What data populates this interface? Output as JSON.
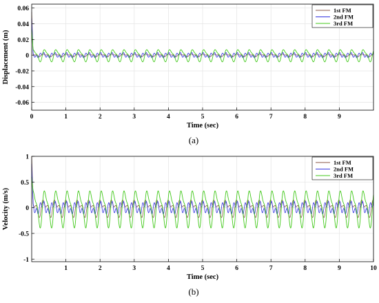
{
  "colors": {
    "first": "#8b5a4a",
    "second": "#3030e0",
    "third": "#40c818"
  },
  "chart_data": [
    {
      "type": "line",
      "caption": "(a)",
      "xlabel": "Time (sec)",
      "ylabel": "Displacement (m)",
      "xlim": [
        0,
        10
      ],
      "ylim": [
        -0.07,
        0.065
      ],
      "grid": true,
      "legend_position": "top-right",
      "xticks": [
        "0",
        "1",
        "2",
        "3",
        "4",
        "5",
        "6",
        "7",
        "8",
        "9"
      ],
      "yticks": [
        "0.06",
        "0.04",
        "0.02",
        "0",
        "-0.02",
        "-0.04",
        "-0.06"
      ],
      "ytick_values": [
        0.06,
        0.04,
        0.02,
        0,
        -0.02,
        -0.04,
        -0.06
      ],
      "period_sec": 0.333,
      "initial_value": 0.055,
      "series": [
        {
          "name": "1st FM",
          "amplitude": 0.002
        },
        {
          "name": "2nd FM",
          "amplitude": 0.004
        },
        {
          "name": "3rd FM",
          "amplitude": 0.009
        }
      ]
    },
    {
      "type": "line",
      "caption": "(b)",
      "xlabel": "Time (sec)",
      "ylabel": "Velocity (m/s)",
      "xlim": [
        0,
        10
      ],
      "ylim": [
        -1.05,
        1.0
      ],
      "grid": true,
      "legend_position": "top-right",
      "xticks": [
        "1",
        "2",
        "3",
        "4",
        "5",
        "6",
        "7",
        "8",
        "9",
        "10"
      ],
      "yticks": [
        "1",
        "0.5",
        "0",
        "-0.5",
        "-1"
      ],
      "ytick_values": [
        1,
        0.5,
        0,
        -0.5,
        -1
      ],
      "period_sec": 0.333,
      "initial_value": 1.0,
      "series": [
        {
          "name": "1st FM",
          "amplitude": 0.2
        },
        {
          "name": "2nd FM",
          "amplitude": 0.15
        },
        {
          "name": "3rd FM",
          "amplitude": 0.42
        }
      ]
    }
  ]
}
